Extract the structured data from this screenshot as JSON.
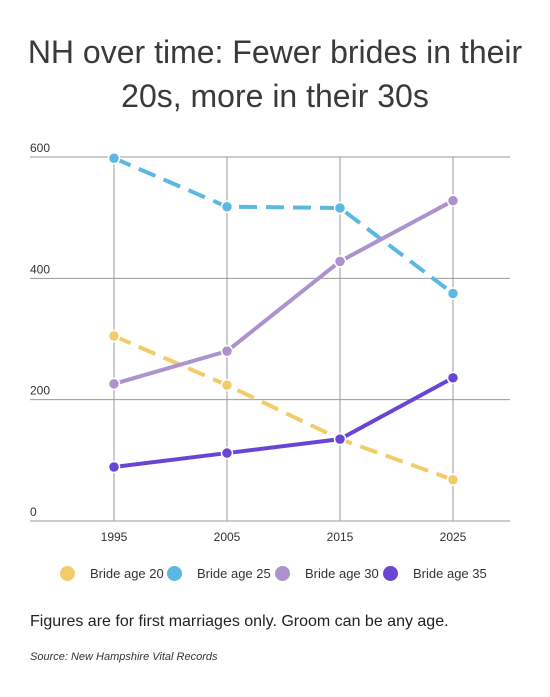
{
  "chart_data": {
    "type": "line",
    "title": "NH over time: Fewer brides in their 20s, more in their 30s",
    "x": [
      "1995",
      "2005",
      "2015",
      "2025"
    ],
    "ylim": [
      0,
      600
    ],
    "yticks": [
      "0",
      "200",
      "400",
      "600"
    ],
    "grid": true,
    "legend_position": "bottom",
    "series": [
      {
        "name": "Bride age 20",
        "color": "#f0cc6b",
        "dash": true,
        "values": [
          305,
          224,
          135,
          68
        ]
      },
      {
        "name": "Bride age 25",
        "color": "#5bb8e3",
        "dash": true,
        "values": [
          598,
          518,
          516,
          375
        ]
      },
      {
        "name": "Bride age 30",
        "color": "#ad93cd",
        "dash": false,
        "values": [
          226,
          280,
          428,
          528
        ]
      },
      {
        "name": "Bride age 35",
        "color": "#6a44d4",
        "dash": false,
        "values": [
          89,
          112,
          135,
          236
        ]
      }
    ]
  },
  "note": "Figures are for first marriages only. Groom can be any age.",
  "source": "Source: New Hampshire Vital Records"
}
